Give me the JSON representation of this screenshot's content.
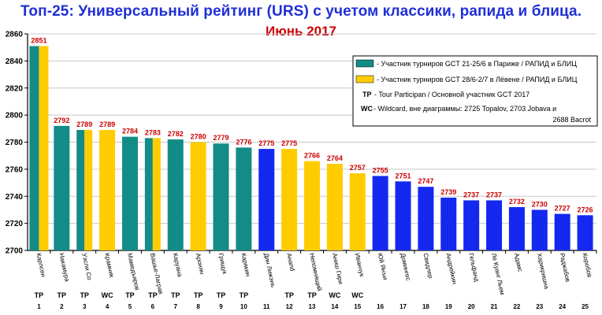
{
  "chart_data": {
    "type": "bar",
    "title": "Топ-25: Универсальный рейтинг (URS) с учетом классики, рапида и блица.",
    "subtitle": "Июнь 2017",
    "ylim": [
      2700,
      2860
    ],
    "yticks": [
      2700,
      2720,
      2740,
      2760,
      2780,
      2800,
      2820,
      2840,
      2860
    ],
    "grid": true,
    "legend_position": "top-right",
    "colors": {
      "paris": "#138c87",
      "leuven": "#ffcc00",
      "other": "#1428f0",
      "value_label": "#cc0000"
    },
    "categories": [
      "Карлсен",
      "Накамура",
      "Уэсли Со",
      "Крамник",
      "Мамедъяров",
      "Вашье-Лаграв",
      "Каруана",
      "Аронян",
      "Грищук",
      "Карякин",
      "Дин Лижэнь",
      "Анand",
      "Непомнящий",
      "Аниш Гири",
      "Иванчук",
      "Юй Янъи",
      "Домингес",
      "Свидлер",
      "Андрейкин",
      "Гельфанд",
      "Ле Куанг Льем",
      "Адамс",
      "Харикришна",
      "Раджабов",
      "Коробов"
    ],
    "values": [
      2851,
      2792,
      2789,
      2789,
      2784,
      2783,
      2782,
      2780,
      2779,
      2776,
      2775,
      2775,
      2766,
      2764,
      2757,
      2755,
      2751,
      2747,
      2739,
      2737,
      2737,
      2732,
      2730,
      2727,
      2726
    ],
    "series_type": [
      "both",
      "paris",
      "both",
      "leuven",
      "paris",
      "both",
      "paris",
      "leuven",
      "paris",
      "paris",
      "other",
      "leuven",
      "leuven",
      "leuven",
      "leuven",
      "other",
      "other",
      "other",
      "other",
      "other",
      "other",
      "other",
      "other",
      "other",
      "other"
    ],
    "tags": [
      "TP",
      "TP",
      "TP",
      "WC",
      "TP",
      "TP",
      "TP",
      "TP",
      "TP",
      "TP",
      "",
      "TP",
      "TP",
      "WC",
      "WC",
      "",
      "",
      "",
      "",
      "",
      "",
      "",
      "",
      "",
      ""
    ],
    "ranks": [
      "1",
      "2",
      "3",
      "4",
      "5",
      "6",
      "7",
      "8",
      "9",
      "10",
      "11",
      "12",
      "13",
      "14",
      "15",
      "16",
      "17",
      "18",
      "19",
      "20",
      "21",
      "22",
      "23",
      "24",
      "25"
    ],
    "legend": {
      "paris": "- Участник турниров GCT 21-25/6 в Париже / РАПИД и БЛИЦ",
      "leuven": "- Участник турниров GCT 28/6-2/7 в Лёвене / РАПИД и БЛИЦ",
      "tp_key": "TP",
      "tp_text": " - Tour Participan / Основной участник GCT 2017",
      "wc_key": "WC",
      "wc_text": " - Wildcard, вне диаграммы:  2725 Topalov, 2703 Jobava и",
      "wc_text2": "2688 Bacrot"
    }
  }
}
